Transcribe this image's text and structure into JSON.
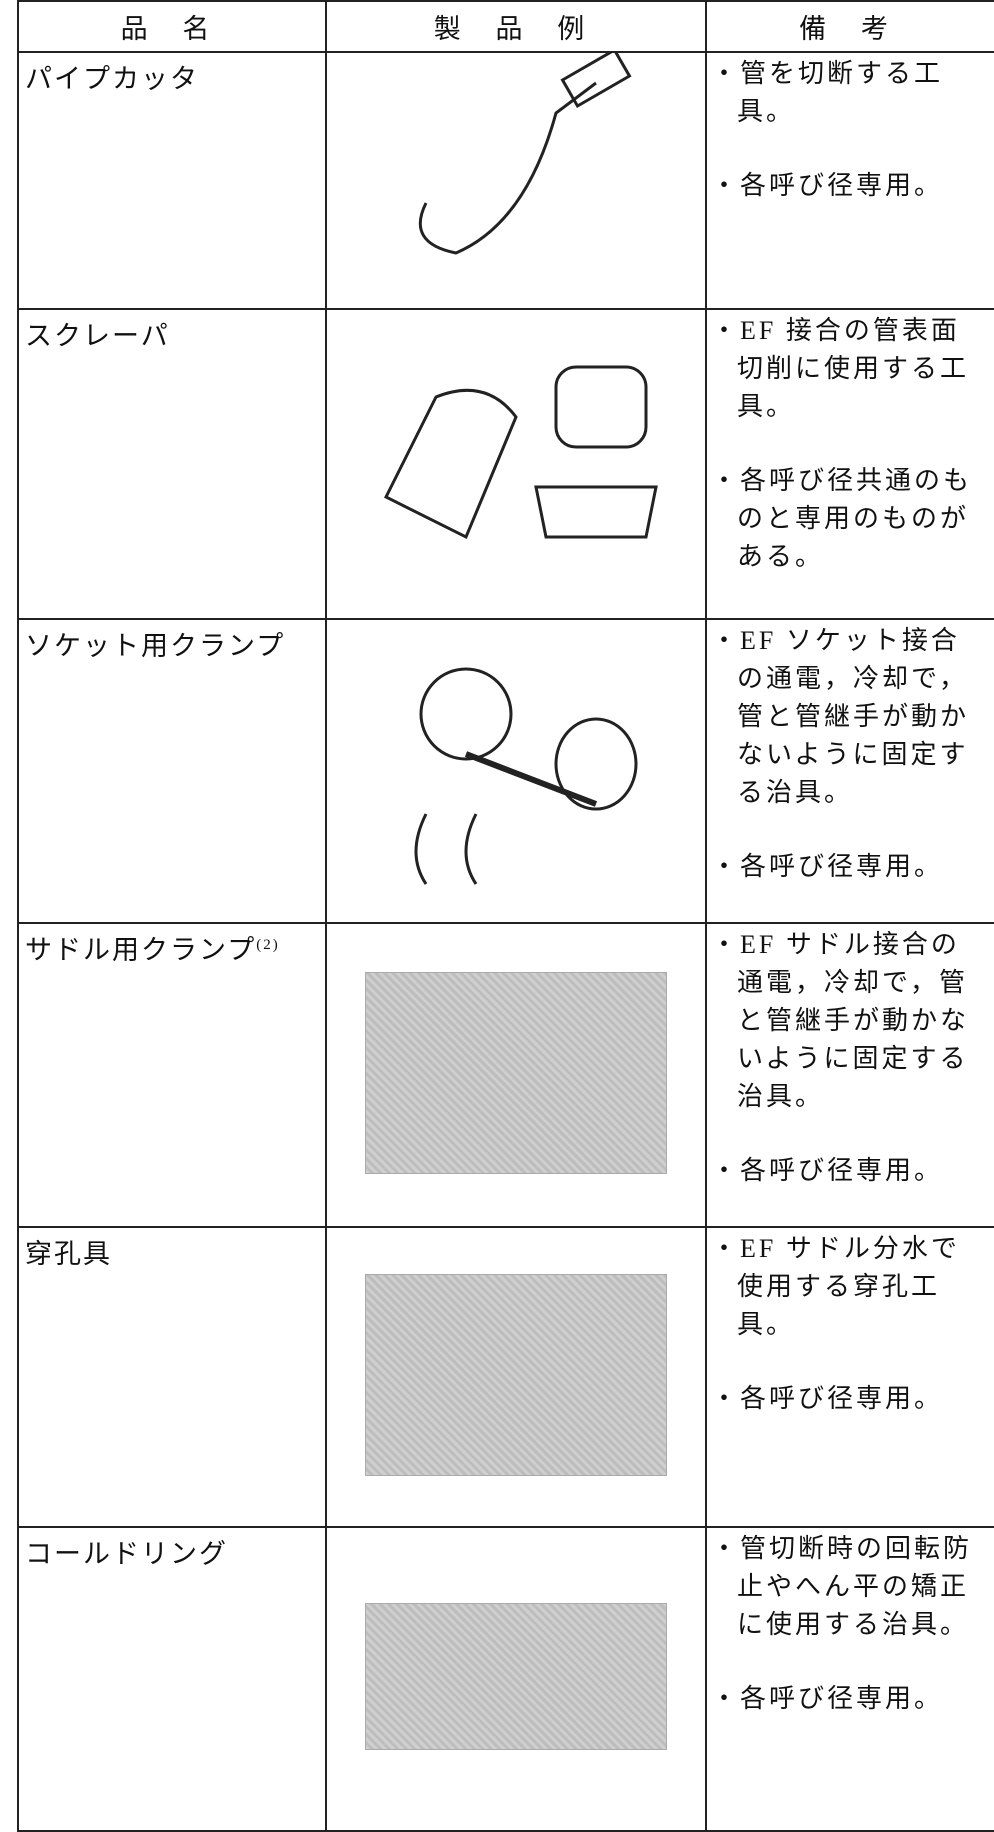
{
  "table": {
    "header": [
      "品 名",
      "製 品 例",
      "備 考"
    ],
    "rows": [
      {
        "name": "パイプカッタ",
        "remarks": [
          "・管を切断する工具。",
          "・各呼び径専用。"
        ]
      },
      {
        "name": "スクレーパ",
        "remarks": [
          "・EF 接合の管表面切削に使用する工具。",
          "・各呼び径共通のものと専用のものがある。"
        ]
      },
      {
        "name": "ソケット用クランプ",
        "remarks": [
          "・EF ソケット接合の通電，冷却で，管と管継手が動かないように固定する治具。",
          "・各呼び径専用。"
        ]
      },
      {
        "name": "サドル用クランプ",
        "note": "(2)",
        "remarks": [
          "・EF サドル接合の通電，冷却で，管と管継手が動かないように固定する治具。",
          "・各呼び径専用。"
        ]
      },
      {
        "name": "穿孔具",
        "remarks": [
          "・EF サドル分水で使用する穿孔工具。",
          "・各呼び径専用。"
        ]
      },
      {
        "name": "コールドリング",
        "remarks": [
          "・管切断時の回転防止やへん平の矯正に使用する治具。",
          "・各呼び径専用。"
        ]
      }
    ]
  }
}
